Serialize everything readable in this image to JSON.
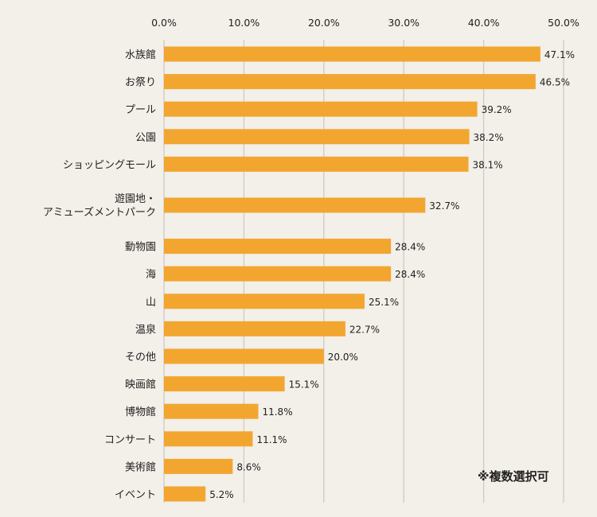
{
  "chart_data": {
    "type": "bar",
    "orientation": "horizontal",
    "categories": [
      "水族館",
      "お祭り",
      "プール",
      "公園",
      "ショッピングモール",
      "遊園地・\nアミューズメントパーク",
      "動物園",
      "海",
      "山",
      "温泉",
      "その他",
      "映画館",
      "博物館",
      "コンサート",
      "美術館",
      "イベント"
    ],
    "values": [
      47.1,
      46.5,
      39.2,
      38.2,
      38.1,
      32.7,
      28.4,
      28.4,
      25.1,
      22.7,
      20.0,
      15.1,
      11.8,
      11.1,
      8.6,
      5.2
    ],
    "value_labels": [
      "47.1%",
      "46.5%",
      "39.2%",
      "38.2%",
      "38.1%",
      "32.7%",
      "28.4%",
      "28.4%",
      "25.1%",
      "22.7%",
      "20.0%",
      "15.1%",
      "11.8%",
      "11.1%",
      "8.6%",
      "5.2%"
    ],
    "xlim": [
      0,
      50
    ],
    "xticks": [
      0,
      10,
      20,
      30,
      40,
      50
    ],
    "xtick_labels": [
      "0.0%",
      "10.0%",
      "20.0%",
      "30.0%",
      "40.0%",
      "50.0%"
    ],
    "axis_position": "top",
    "grid": true,
    "bar_color": "#f2a630",
    "grid_color": "#cfcac3",
    "annotation": "※複数選択可"
  }
}
